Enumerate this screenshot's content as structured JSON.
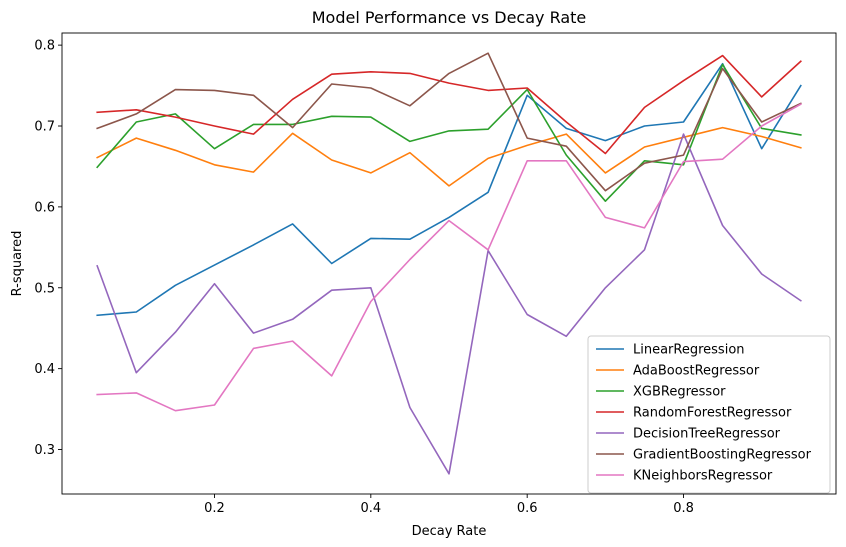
{
  "chart_data": {
    "type": "line",
    "title": "Model Performance vs Decay Rate",
    "xlabel": "Decay Rate",
    "ylabel": "R-squared",
    "xlim": [
      0.005,
      0.995
    ],
    "ylim": [
      0.245,
      0.815
    ],
    "xticks": [
      0.2,
      0.4,
      0.6,
      0.8
    ],
    "xtick_labels": [
      "0.2",
      "0.4",
      "0.6",
      "0.8"
    ],
    "yticks": [
      0.3,
      0.4,
      0.5,
      0.6,
      0.7,
      0.8
    ],
    "ytick_labels": [
      "0.3",
      "0.4",
      "0.5",
      "0.6",
      "0.7",
      "0.8"
    ],
    "grid": false,
    "legend_position": "lower-right",
    "x": [
      0.05,
      0.1,
      0.15,
      0.2,
      0.25,
      0.3,
      0.35,
      0.4,
      0.45,
      0.5,
      0.55,
      0.6,
      0.65,
      0.7,
      0.75,
      0.8,
      0.85,
      0.9,
      0.95
    ],
    "series": [
      {
        "name": "LinearRegression",
        "color": "#1f77b4",
        "values": [
          0.466,
          0.47,
          0.503,
          0.528,
          0.553,
          0.579,
          0.53,
          0.561,
          0.56,
          0.587,
          0.618,
          0.738,
          0.697,
          0.682,
          0.7,
          0.705,
          0.777,
          0.672,
          0.75
        ]
      },
      {
        "name": "AdaBoostRegressor",
        "color": "#ff7f0e",
        "values": [
          0.661,
          0.685,
          0.67,
          0.652,
          0.643,
          0.691,
          0.658,
          0.642,
          0.667,
          0.626,
          0.66,
          0.676,
          0.69,
          0.642,
          0.674,
          0.686,
          0.698,
          0.687,
          0.673
        ]
      },
      {
        "name": "XGBRegressor",
        "color": "#2ca02c",
        "values": [
          0.649,
          0.705,
          0.715,
          0.672,
          0.702,
          0.702,
          0.712,
          0.711,
          0.681,
          0.694,
          0.696,
          0.745,
          0.664,
          0.607,
          0.657,
          0.652,
          0.776,
          0.697,
          0.689
        ]
      },
      {
        "name": "RandomForestRegressor",
        "color": "#d62728",
        "values": [
          0.717,
          0.72,
          0.711,
          0.7,
          0.69,
          0.733,
          0.764,
          0.767,
          0.765,
          0.753,
          0.744,
          0.747,
          0.705,
          0.666,
          0.723,
          0.756,
          0.787,
          0.736,
          0.78
        ]
      },
      {
        "name": "DecisionTreeRegressor",
        "color": "#9467bd",
        "values": [
          0.527,
          0.395,
          0.445,
          0.505,
          0.444,
          0.461,
          0.497,
          0.5,
          0.352,
          0.27,
          0.546,
          0.467,
          0.44,
          0.5,
          0.547,
          0.69,
          0.577,
          0.517,
          0.484
        ]
      },
      {
        "name": "GradientBoostingRegressor",
        "color": "#8c564b",
        "values": [
          0.697,
          0.715,
          0.745,
          0.744,
          0.738,
          0.698,
          0.752,
          0.747,
          0.725,
          0.765,
          0.79,
          0.685,
          0.675,
          0.62,
          0.654,
          0.664,
          0.771,
          0.705,
          0.728
        ]
      },
      {
        "name": "KNeighborsRegressor",
        "color": "#e377c2",
        "values": [
          0.368,
          0.37,
          0.348,
          0.355,
          0.425,
          0.434,
          0.391,
          0.483,
          0.535,
          0.583,
          0.547,
          0.657,
          0.657,
          0.587,
          0.574,
          0.656,
          0.659,
          0.7,
          0.727
        ]
      }
    ]
  }
}
